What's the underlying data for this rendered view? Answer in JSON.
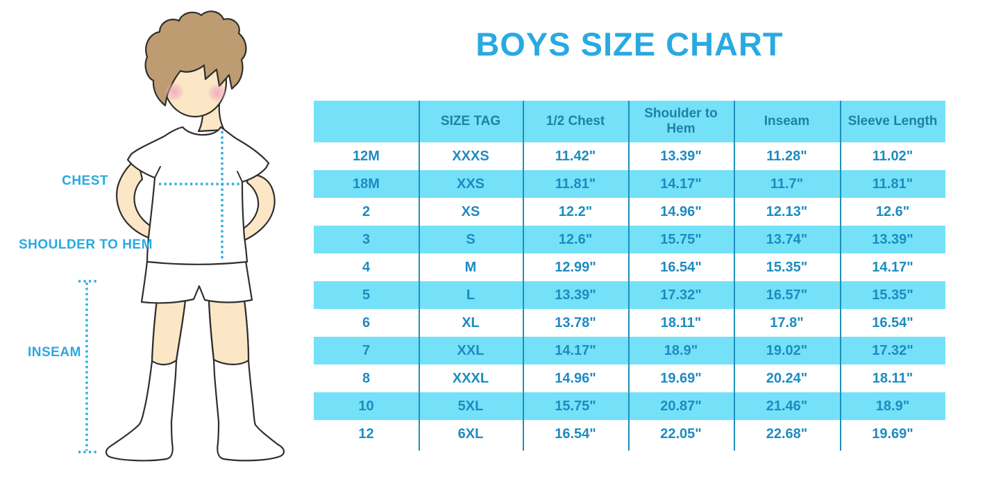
{
  "chart_data": {
    "type": "table",
    "title": "BOYS SIZE CHART",
    "columns": [
      "",
      "SIZE TAG",
      "1/2 Chest",
      "Shoulder to Hem",
      "Inseam",
      "Sleeve Length"
    ],
    "rows": [
      [
        "12M",
        "XXXS",
        "11.42\"",
        "13.39\"",
        "11.28\"",
        "11.02\""
      ],
      [
        "18M",
        "XXS",
        "11.81\"",
        "14.17\"",
        "11.7\"",
        "11.81\""
      ],
      [
        "2",
        "XS",
        "12.2\"",
        "14.96\"",
        "12.13\"",
        "12.6\""
      ],
      [
        "3",
        "S",
        "12.6\"",
        "15.75\"",
        "13.74\"",
        "13.39\""
      ],
      [
        "4",
        "M",
        "12.99\"",
        "16.54\"",
        "15.35\"",
        "14.17\""
      ],
      [
        "5",
        "L",
        "13.39\"",
        "17.32\"",
        "16.57\"",
        "15.35\""
      ],
      [
        "6",
        "XL",
        "13.78\"",
        "18.11\"",
        "17.8\"",
        "16.54\""
      ],
      [
        "7",
        "XXL",
        "14.17\"",
        "18.9\"",
        "19.02\"",
        "17.32\""
      ],
      [
        "8",
        "XXXL",
        "14.96\"",
        "19.69\"",
        "20.24\"",
        "18.11\""
      ],
      [
        "10",
        "5XL",
        "15.75\"",
        "20.87\"",
        "21.46\"",
        "18.9\""
      ],
      [
        "12",
        "6XL",
        "16.54\"",
        "22.05\"",
        "22.68\"",
        "19.69\""
      ]
    ],
    "row_striping": "alternating white and light blue, starting white",
    "units": "inches"
  },
  "figure": {
    "chest_label": "CHEST",
    "shoulder_label": "SHOULDER TO HEM",
    "inseam_label": "INSEAM",
    "description": "cartoon boy with brown hair, white t-shirt, white shorts and white knee socks, dotted cyan measurement lines"
  },
  "colors": {
    "title_blue": "#29A9E1",
    "label_blue": "#29A9E1",
    "dotted_line": "#2AACE3",
    "table_band": "#75E1F8",
    "table_divider": "#1D8FBE",
    "header_text": "#217FA7",
    "cell_text": "#1D8BC0",
    "skin": "#FBE7C5",
    "hair": "#BE9C72",
    "outline": "#2E2E2E",
    "blush": "#F2A9BE"
  }
}
